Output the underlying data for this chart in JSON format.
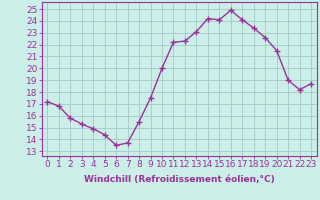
{
  "x": [
    0,
    1,
    2,
    3,
    4,
    5,
    6,
    7,
    8,
    9,
    10,
    11,
    12,
    13,
    14,
    15,
    16,
    17,
    18,
    19,
    20,
    21,
    22,
    23
  ],
  "y": [
    17.2,
    16.8,
    15.8,
    15.3,
    14.9,
    14.4,
    13.5,
    13.7,
    15.5,
    17.5,
    20.0,
    22.2,
    22.3,
    23.1,
    24.2,
    24.1,
    24.9,
    24.1,
    23.4,
    22.6,
    21.5,
    19.0,
    18.2,
    18.7
  ],
  "line_color": "#993399",
  "marker": "+",
  "markersize": 4,
  "linewidth": 1.0,
  "bg_color": "#cceee8",
  "grid_color": "#aacccc",
  "xlabel": "Windchill (Refroidissement éolien,°C)",
  "ylabel_ticks": [
    13,
    14,
    15,
    16,
    17,
    18,
    19,
    20,
    21,
    22,
    23,
    24,
    25
  ],
  "xlim": [
    -0.5,
    23.5
  ],
  "ylim": [
    12.6,
    25.6
  ],
  "xlabel_fontsize": 6.5,
  "tick_fontsize": 6.5,
  "label_color": "#993399"
}
